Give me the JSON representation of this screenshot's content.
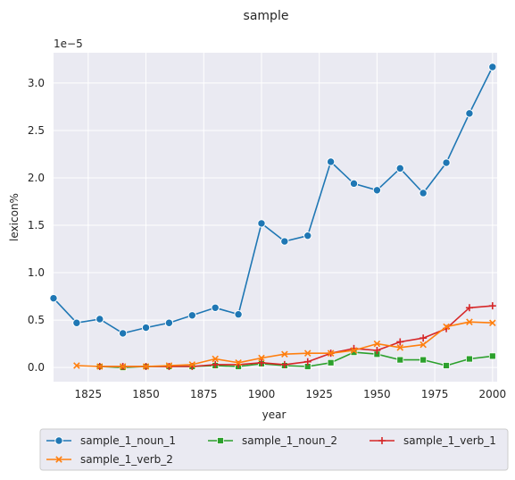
{
  "chart_data": {
    "type": "line",
    "title": "sample",
    "xlabel": "year",
    "ylabel": "lexicon%",
    "offset_text": "1e−5",
    "xlim": [
      1810,
      2002
    ],
    "ylim": [
      -0.15,
      3.32
    ],
    "xticks": [
      1825,
      1850,
      1875,
      1900,
      1925,
      1950,
      1975,
      2000
    ],
    "yticks": [
      0.0,
      0.5,
      1.0,
      1.5,
      2.0,
      2.5,
      3.0
    ],
    "ytick_labels": [
      "0.0",
      "0.5",
      "1.0",
      "1.5",
      "2.0",
      "2.5",
      "3.0"
    ],
    "grid": true,
    "legend_placement": "below",
    "series": [
      {
        "name": "sample_1_noun_1",
        "color": "#1f77b4",
        "marker": "circle",
        "x": [
          1810,
          1820,
          1830,
          1840,
          1850,
          1860,
          1870,
          1880,
          1890,
          1900,
          1910,
          1920,
          1930,
          1940,
          1950,
          1960,
          1970,
          1980,
          1990,
          2000
        ],
        "y": [
          0.73,
          0.47,
          0.51,
          0.36,
          0.42,
          0.47,
          0.55,
          0.63,
          0.56,
          1.52,
          1.33,
          1.39,
          2.17,
          1.94,
          1.87,
          2.1,
          1.84,
          2.16,
          2.68,
          3.17
        ]
      },
      {
        "name": "sample_1_noun_2",
        "color": "#2ca02c",
        "marker": "square",
        "x": [
          1830,
          1840,
          1850,
          1860,
          1870,
          1880,
          1890,
          1900,
          1910,
          1920,
          1930,
          1940,
          1950,
          1960,
          1970,
          1980,
          1990,
          2000
        ],
        "y": [
          0.01,
          0.0,
          0.01,
          0.01,
          0.01,
          0.02,
          0.01,
          0.04,
          0.02,
          0.01,
          0.05,
          0.16,
          0.14,
          0.08,
          0.08,
          0.02,
          0.09,
          0.12
        ]
      },
      {
        "name": "sample_1_verb_1",
        "color": "#d62728",
        "marker": "plus",
        "x": [
          1830,
          1840,
          1850,
          1860,
          1870,
          1880,
          1890,
          1900,
          1910,
          1920,
          1930,
          1940,
          1950,
          1960,
          1970,
          1980,
          1990,
          2000
        ],
        "y": [
          0.01,
          0.01,
          0.01,
          0.01,
          0.01,
          0.03,
          0.03,
          0.05,
          0.03,
          0.06,
          0.15,
          0.2,
          0.18,
          0.27,
          0.31,
          0.41,
          0.63,
          0.65
        ]
      },
      {
        "name": "sample_1_verb_2",
        "color": "#ff7f0e",
        "marker": "x",
        "x": [
          1820,
          1830,
          1840,
          1850,
          1860,
          1870,
          1880,
          1890,
          1900,
          1910,
          1920,
          1930,
          1940,
          1950,
          1960,
          1970,
          1980,
          1990,
          2000
        ],
        "y": [
          0.02,
          0.01,
          0.01,
          0.01,
          0.02,
          0.03,
          0.09,
          0.05,
          0.1,
          0.14,
          0.15,
          0.15,
          0.18,
          0.25,
          0.21,
          0.24,
          0.43,
          0.48,
          0.47
        ]
      }
    ],
    "legend_order": [
      "sample_1_noun_1",
      "sample_1_noun_2",
      "sample_1_verb_1",
      "sample_1_verb_2"
    ]
  }
}
